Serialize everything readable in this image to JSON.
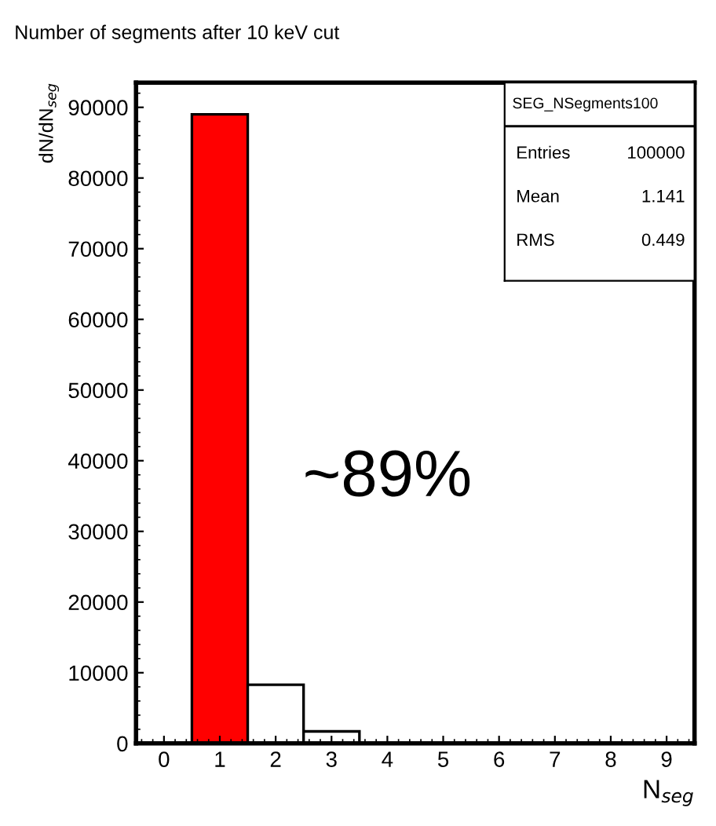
{
  "chart_data": {
    "type": "histogram",
    "title": "Number of segments after 10 keV cut",
    "xlabel": "N$_{seg}$",
    "ylabel": "dN/dN$_{seg}$",
    "bins": [
      -0.5,
      0.5,
      1.5,
      2.5,
      3.5,
      4.5,
      5.5,
      6.5,
      7.5,
      8.5,
      9.5
    ],
    "values": [
      0,
      89000,
      8300,
      1700,
      0,
      0,
      0,
      0,
      0,
      0
    ],
    "colors": [
      "#ffffff",
      "#ff0000",
      "#ffffff",
      "#ffffff",
      "#ffffff",
      "#ffffff",
      "#ffffff",
      "#ffffff",
      "#ffffff",
      "#ffffff"
    ],
    "xlim": [
      -0.5,
      9.5
    ],
    "xticks": [
      0,
      1,
      2,
      3,
      4,
      5,
      6,
      7,
      8,
      9
    ],
    "ylim": [
      0,
      93500
    ],
    "yticks": [
      0,
      10000,
      20000,
      30000,
      40000,
      50000,
      60000,
      70000,
      80000,
      90000
    ],
    "grid": false,
    "annotations": [
      "~89%",
      "SEG_NSegments100",
      "Entries",
      "100000",
      "Mean",
      "1.141",
      "RMS",
      "0.449"
    ]
  }
}
